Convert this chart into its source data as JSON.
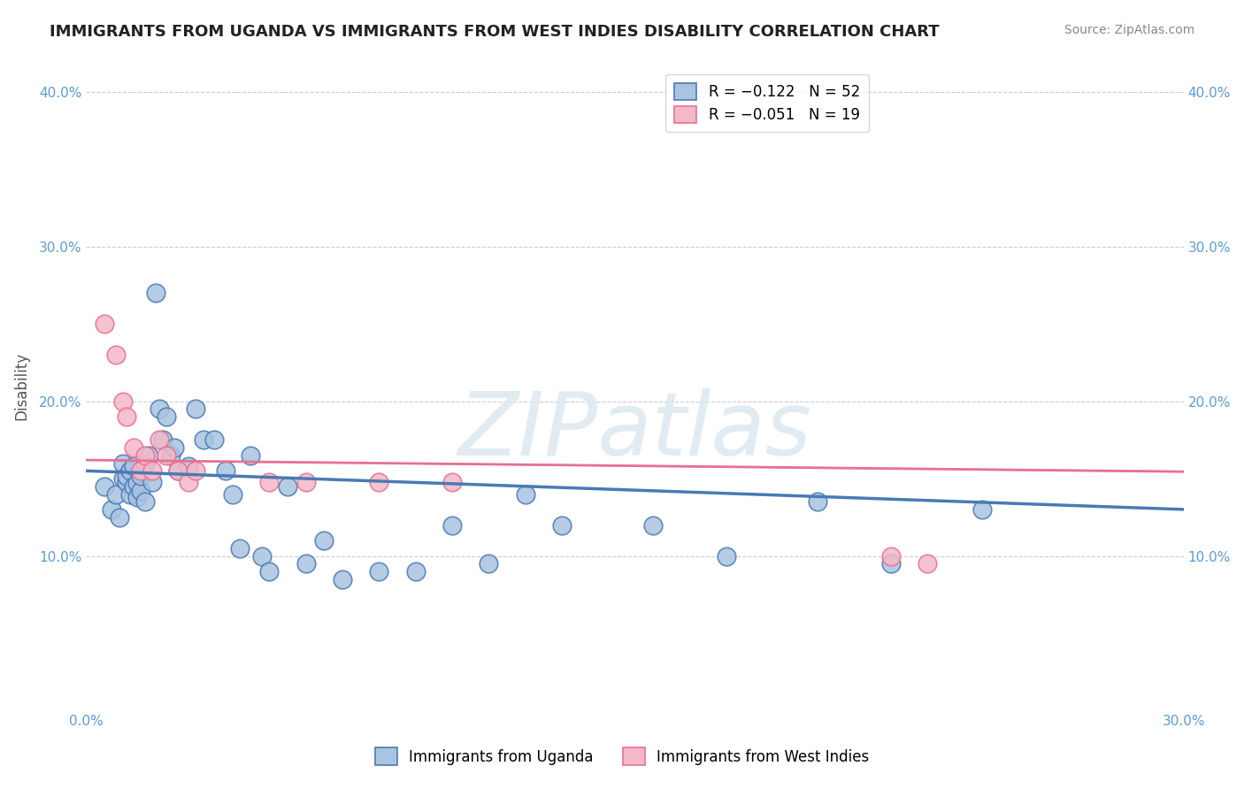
{
  "title": "IMMIGRANTS FROM UGANDA VS IMMIGRANTS FROM WEST INDIES DISABILITY CORRELATION CHART",
  "source": "Source: ZipAtlas.com",
  "ylabel": "Disability",
  "xlim": [
    0.0,
    0.3
  ],
  "ylim": [
    0.0,
    0.42
  ],
  "yticks": [
    0.1,
    0.2,
    0.3,
    0.4
  ],
  "ytick_labels": [
    "10.0%",
    "20.0%",
    "30.0%",
    "40.0%"
  ],
  "legend_r1": "R = −0.122",
  "legend_n1": "N = 52",
  "legend_r2": "R = −0.051",
  "legend_n2": "N = 19",
  "color_uganda": "#a8c4e0",
  "color_west_indies": "#f4b8c8",
  "color_uganda_line": "#4a7ab5",
  "color_west_indies_line": "#e87090",
  "color_dashed_line": "#a0b8d0",
  "uganda_x": [
    0.005,
    0.007,
    0.008,
    0.009,
    0.01,
    0.01,
    0.011,
    0.011,
    0.012,
    0.012,
    0.013,
    0.013,
    0.014,
    0.014,
    0.015,
    0.015,
    0.016,
    0.016,
    0.017,
    0.018,
    0.019,
    0.02,
    0.021,
    0.022,
    0.023,
    0.024,
    0.025,
    0.028,
    0.03,
    0.032,
    0.035,
    0.038,
    0.04,
    0.042,
    0.045,
    0.048,
    0.05,
    0.055,
    0.06,
    0.065,
    0.07,
    0.08,
    0.09,
    0.1,
    0.11,
    0.12,
    0.13,
    0.155,
    0.175,
    0.2,
    0.22,
    0.245
  ],
  "uganda_y": [
    0.145,
    0.13,
    0.14,
    0.125,
    0.15,
    0.16,
    0.148,
    0.152,
    0.155,
    0.14,
    0.145,
    0.158,
    0.138,
    0.147,
    0.142,
    0.152,
    0.16,
    0.135,
    0.165,
    0.148,
    0.27,
    0.195,
    0.175,
    0.19,
    0.165,
    0.17,
    0.155,
    0.158,
    0.195,
    0.175,
    0.175,
    0.155,
    0.14,
    0.105,
    0.165,
    0.1,
    0.09,
    0.145,
    0.095,
    0.11,
    0.085,
    0.09,
    0.09,
    0.12,
    0.095,
    0.14,
    0.12,
    0.12,
    0.1,
    0.135,
    0.095,
    0.13
  ],
  "west_indies_x": [
    0.005,
    0.008,
    0.01,
    0.011,
    0.013,
    0.015,
    0.016,
    0.018,
    0.02,
    0.022,
    0.025,
    0.028,
    0.03,
    0.05,
    0.06,
    0.08,
    0.1,
    0.22,
    0.23
  ],
  "west_indies_y": [
    0.25,
    0.23,
    0.2,
    0.19,
    0.17,
    0.155,
    0.165,
    0.155,
    0.175,
    0.165,
    0.155,
    0.148,
    0.155,
    0.148,
    0.148,
    0.148,
    0.148,
    0.1,
    0.095
  ],
  "uganda_slope": -0.083,
  "uganda_intercept": 0.155,
  "wi_slope": -0.025,
  "wi_intercept": 0.162
}
